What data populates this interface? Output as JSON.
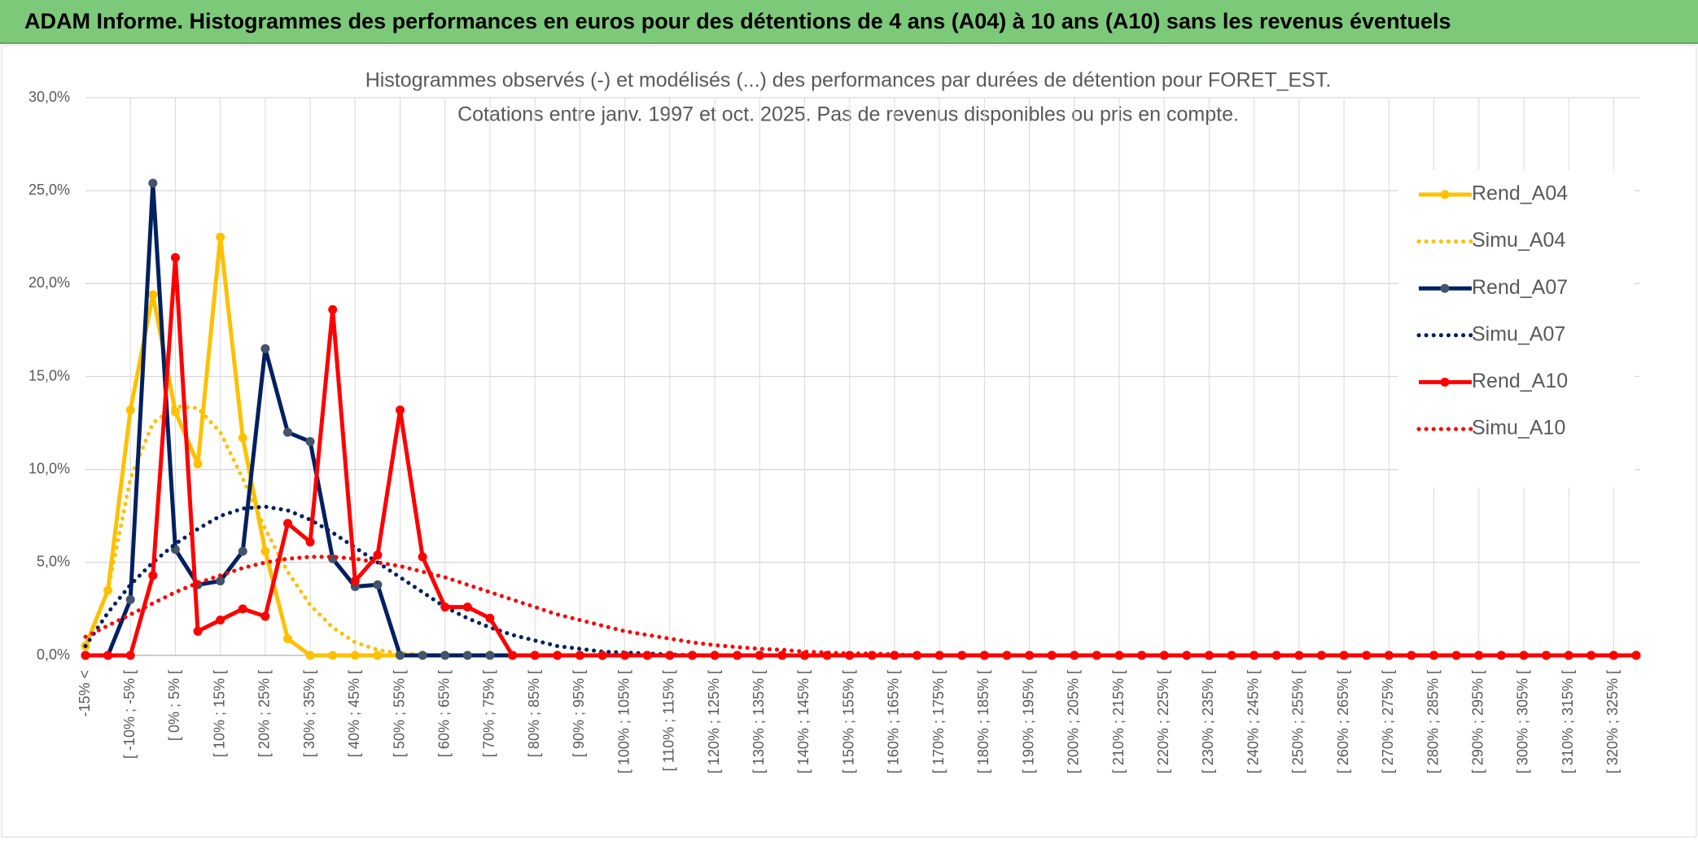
{
  "header": {
    "title": "ADAM Informe. Histogrammes des performances en euros pour des détentions de 4 ans (A04) à 10 ans (A10) sans les revenus éventuels"
  },
  "chart_data": {
    "type": "line",
    "title": "Histogrammes observés (-) et modélisés (...) des performances par durées de détention pour FORET_EST.",
    "subtitle": "Cotations entre janv. 1997 et oct. 2025. Pas de revenus disponibles ou pris en compte.",
    "categories": [
      "-15% <",
      null,
      "[ -10% ; -5% [",
      null,
      "[ 0% ; 5% [",
      null,
      "[ 10% ; 15% [",
      null,
      "[ 20% ; 25% [",
      null,
      "[ 30% ; 35% [",
      null,
      "[ 40% ; 45% [",
      null,
      "[ 50% ; 55% [",
      null,
      "[ 60% ; 65% [",
      null,
      "[ 70% ; 75% [",
      null,
      "[ 80% ; 85% [",
      null,
      "[ 90% ; 95% [",
      null,
      "[ 100% ; 105% [",
      null,
      "[ 110% ; 115% [",
      null,
      "[ 120% ; 125% [",
      null,
      "[ 130% ; 135% [",
      null,
      "[ 140% ; 145% [",
      null,
      "[ 150% ; 155% [",
      null,
      "[ 160% ; 165% [",
      null,
      "[ 170% ; 175% [",
      null,
      "[ 180% ; 185% [",
      null,
      "[ 190% ; 195% [",
      null,
      "[ 200% ; 205% [",
      null,
      "[ 210% ; 215% [",
      null,
      "[ 220% ; 225% [",
      null,
      "[ 230% ; 235% [",
      null,
      "[ 240% ; 245% [",
      null,
      "[ 250% ; 255% [",
      null,
      "[ 260% ; 265% [",
      null,
      "[ 270% ; 275% [",
      null,
      "[ 280% ; 285% [",
      null,
      "[ 290% ; 295% [",
      null,
      "[ 300% ; 305% [",
      null,
      "[ 310% ; 315% [",
      null,
      "[ 320% ; 325% [",
      null
    ],
    "series": [
      {
        "name": "Rend_A04",
        "color": "#FFC000",
        "style": "solid",
        "markers": true,
        "values": [
          0.5,
          3.5,
          13.2,
          19.4,
          13.1,
          10.3,
          22.5,
          11.7,
          5.6,
          0.9,
          0,
          0,
          0,
          0,
          0,
          0,
          0,
          0,
          0,
          0,
          0,
          0,
          0,
          0,
          0,
          0,
          0,
          0,
          0,
          0,
          0,
          0,
          0,
          0,
          0,
          0,
          0,
          0,
          0,
          0,
          0,
          0,
          0,
          0,
          0,
          0,
          0,
          0,
          0,
          0,
          0,
          0,
          0,
          0,
          0,
          0,
          0,
          0,
          0,
          0,
          0,
          0,
          0,
          0,
          0,
          0,
          0,
          0,
          0,
          0
        ]
      },
      {
        "name": "Simu_A04",
        "color": "#FFC000",
        "style": "dotted",
        "markers": false,
        "values": [
          0.5,
          3.5,
          9.5,
          12.5,
          13.4,
          13.3,
          12,
          9.5,
          6.8,
          4.5,
          2.7,
          1.5,
          0.7,
          0.3,
          0.1,
          0.05,
          0,
          0,
          0,
          0,
          0,
          0,
          0,
          0,
          0,
          0,
          0,
          0,
          0,
          0,
          0,
          0,
          0,
          0,
          0,
          0,
          0,
          0,
          0,
          0,
          0,
          0,
          0,
          0,
          0,
          0,
          0,
          0,
          0,
          0,
          0,
          0,
          0,
          0,
          0,
          0,
          0,
          0,
          0,
          0,
          0,
          0,
          0,
          0,
          0,
          0,
          0,
          0,
          0,
          0
        ]
      },
      {
        "name": "Rend_A07",
        "color": "#002060",
        "style": "solid",
        "markers": true,
        "values": [
          0,
          0,
          3.0,
          25.4,
          5.7,
          3.8,
          4.0,
          5.6,
          16.5,
          12.0,
          11.5,
          5.2,
          3.7,
          3.8,
          0,
          0,
          0,
          0,
          0,
          0,
          0,
          0,
          0,
          0,
          0,
          0,
          0,
          0,
          0,
          0,
          0,
          0,
          0,
          0,
          0,
          0,
          0,
          0,
          0,
          0,
          0,
          0,
          0,
          0,
          0,
          0,
          0,
          0,
          0,
          0,
          0,
          0,
          0,
          0,
          0,
          0,
          0,
          0,
          0,
          0,
          0,
          0,
          0,
          0,
          0,
          0,
          0,
          0,
          0,
          0
        ]
      },
      {
        "name": "Simu_A07",
        "color": "#002060",
        "style": "dotted",
        "markers": false,
        "values": [
          0.5,
          2.3,
          3.8,
          5.0,
          6.0,
          6.8,
          7.5,
          7.9,
          8.0,
          7.8,
          7.3,
          6.6,
          5.8,
          5.0,
          4.2,
          3.4,
          2.6,
          2.0,
          1.5,
          1.1,
          0.8,
          0.5,
          0.35,
          0.2,
          0.15,
          0.1,
          0.05,
          0,
          0,
          0,
          0,
          0,
          0,
          0,
          0,
          0,
          0,
          0,
          0,
          0,
          0,
          0,
          0,
          0,
          0,
          0,
          0,
          0,
          0,
          0,
          0,
          0,
          0,
          0,
          0,
          0,
          0,
          0,
          0,
          0,
          0,
          0,
          0,
          0,
          0,
          0,
          0,
          0,
          0,
          0
        ]
      },
      {
        "name": "Rend_A10",
        "color": "#FF0000",
        "style": "solid",
        "markers": true,
        "values": [
          0,
          0,
          0,
          4.3,
          21.4,
          1.3,
          1.9,
          2.5,
          2.1,
          7.1,
          6.1,
          18.6,
          4.0,
          5.4,
          13.2,
          5.3,
          2.6,
          2.6,
          2.0,
          0,
          0,
          0,
          0,
          0,
          0,
          0,
          0,
          0,
          0,
          0,
          0,
          0,
          0,
          0,
          0,
          0,
          0,
          0,
          0,
          0,
          0,
          0,
          0,
          0,
          0,
          0,
          0,
          0,
          0,
          0,
          0,
          0,
          0,
          0,
          0,
          0,
          0,
          0,
          0,
          0,
          0,
          0,
          0,
          0,
          0,
          0,
          0,
          0,
          0,
          0
        ]
      },
      {
        "name": "Simu_A10",
        "color": "#FF0000",
        "style": "dotted",
        "markers": false,
        "values": [
          1.0,
          1.6,
          2.2,
          2.8,
          3.4,
          3.9,
          4.3,
          4.7,
          5.0,
          5.2,
          5.3,
          5.3,
          5.2,
          5.0,
          4.8,
          4.5,
          4.2,
          3.8,
          3.4,
          3.0,
          2.6,
          2.2,
          1.9,
          1.6,
          1.3,
          1.1,
          0.9,
          0.7,
          0.55,
          0.45,
          0.35,
          0.3,
          0.2,
          0.15,
          0.1,
          0.1,
          0.05,
          0,
          0,
          0,
          0,
          0,
          0,
          0,
          0,
          0,
          0,
          0,
          0,
          0,
          0,
          0,
          0,
          0,
          0,
          0,
          0,
          0,
          0,
          0,
          0,
          0,
          0,
          0,
          0,
          0,
          0,
          0,
          0,
          0
        ]
      }
    ],
    "ylim": [
      0,
      30
    ],
    "yticks": [
      {
        "value": 0,
        "label": "0,0%"
      },
      {
        "value": 5,
        "label": "5,0%"
      },
      {
        "value": 10,
        "label": "10,0%"
      },
      {
        "value": 15,
        "label": "15,0%"
      },
      {
        "value": 20,
        "label": "20,0%"
      },
      {
        "value": 25,
        "label": "25,0%"
      },
      {
        "value": 30,
        "label": "30,0%"
      }
    ],
    "grid": true,
    "legend": "right"
  }
}
